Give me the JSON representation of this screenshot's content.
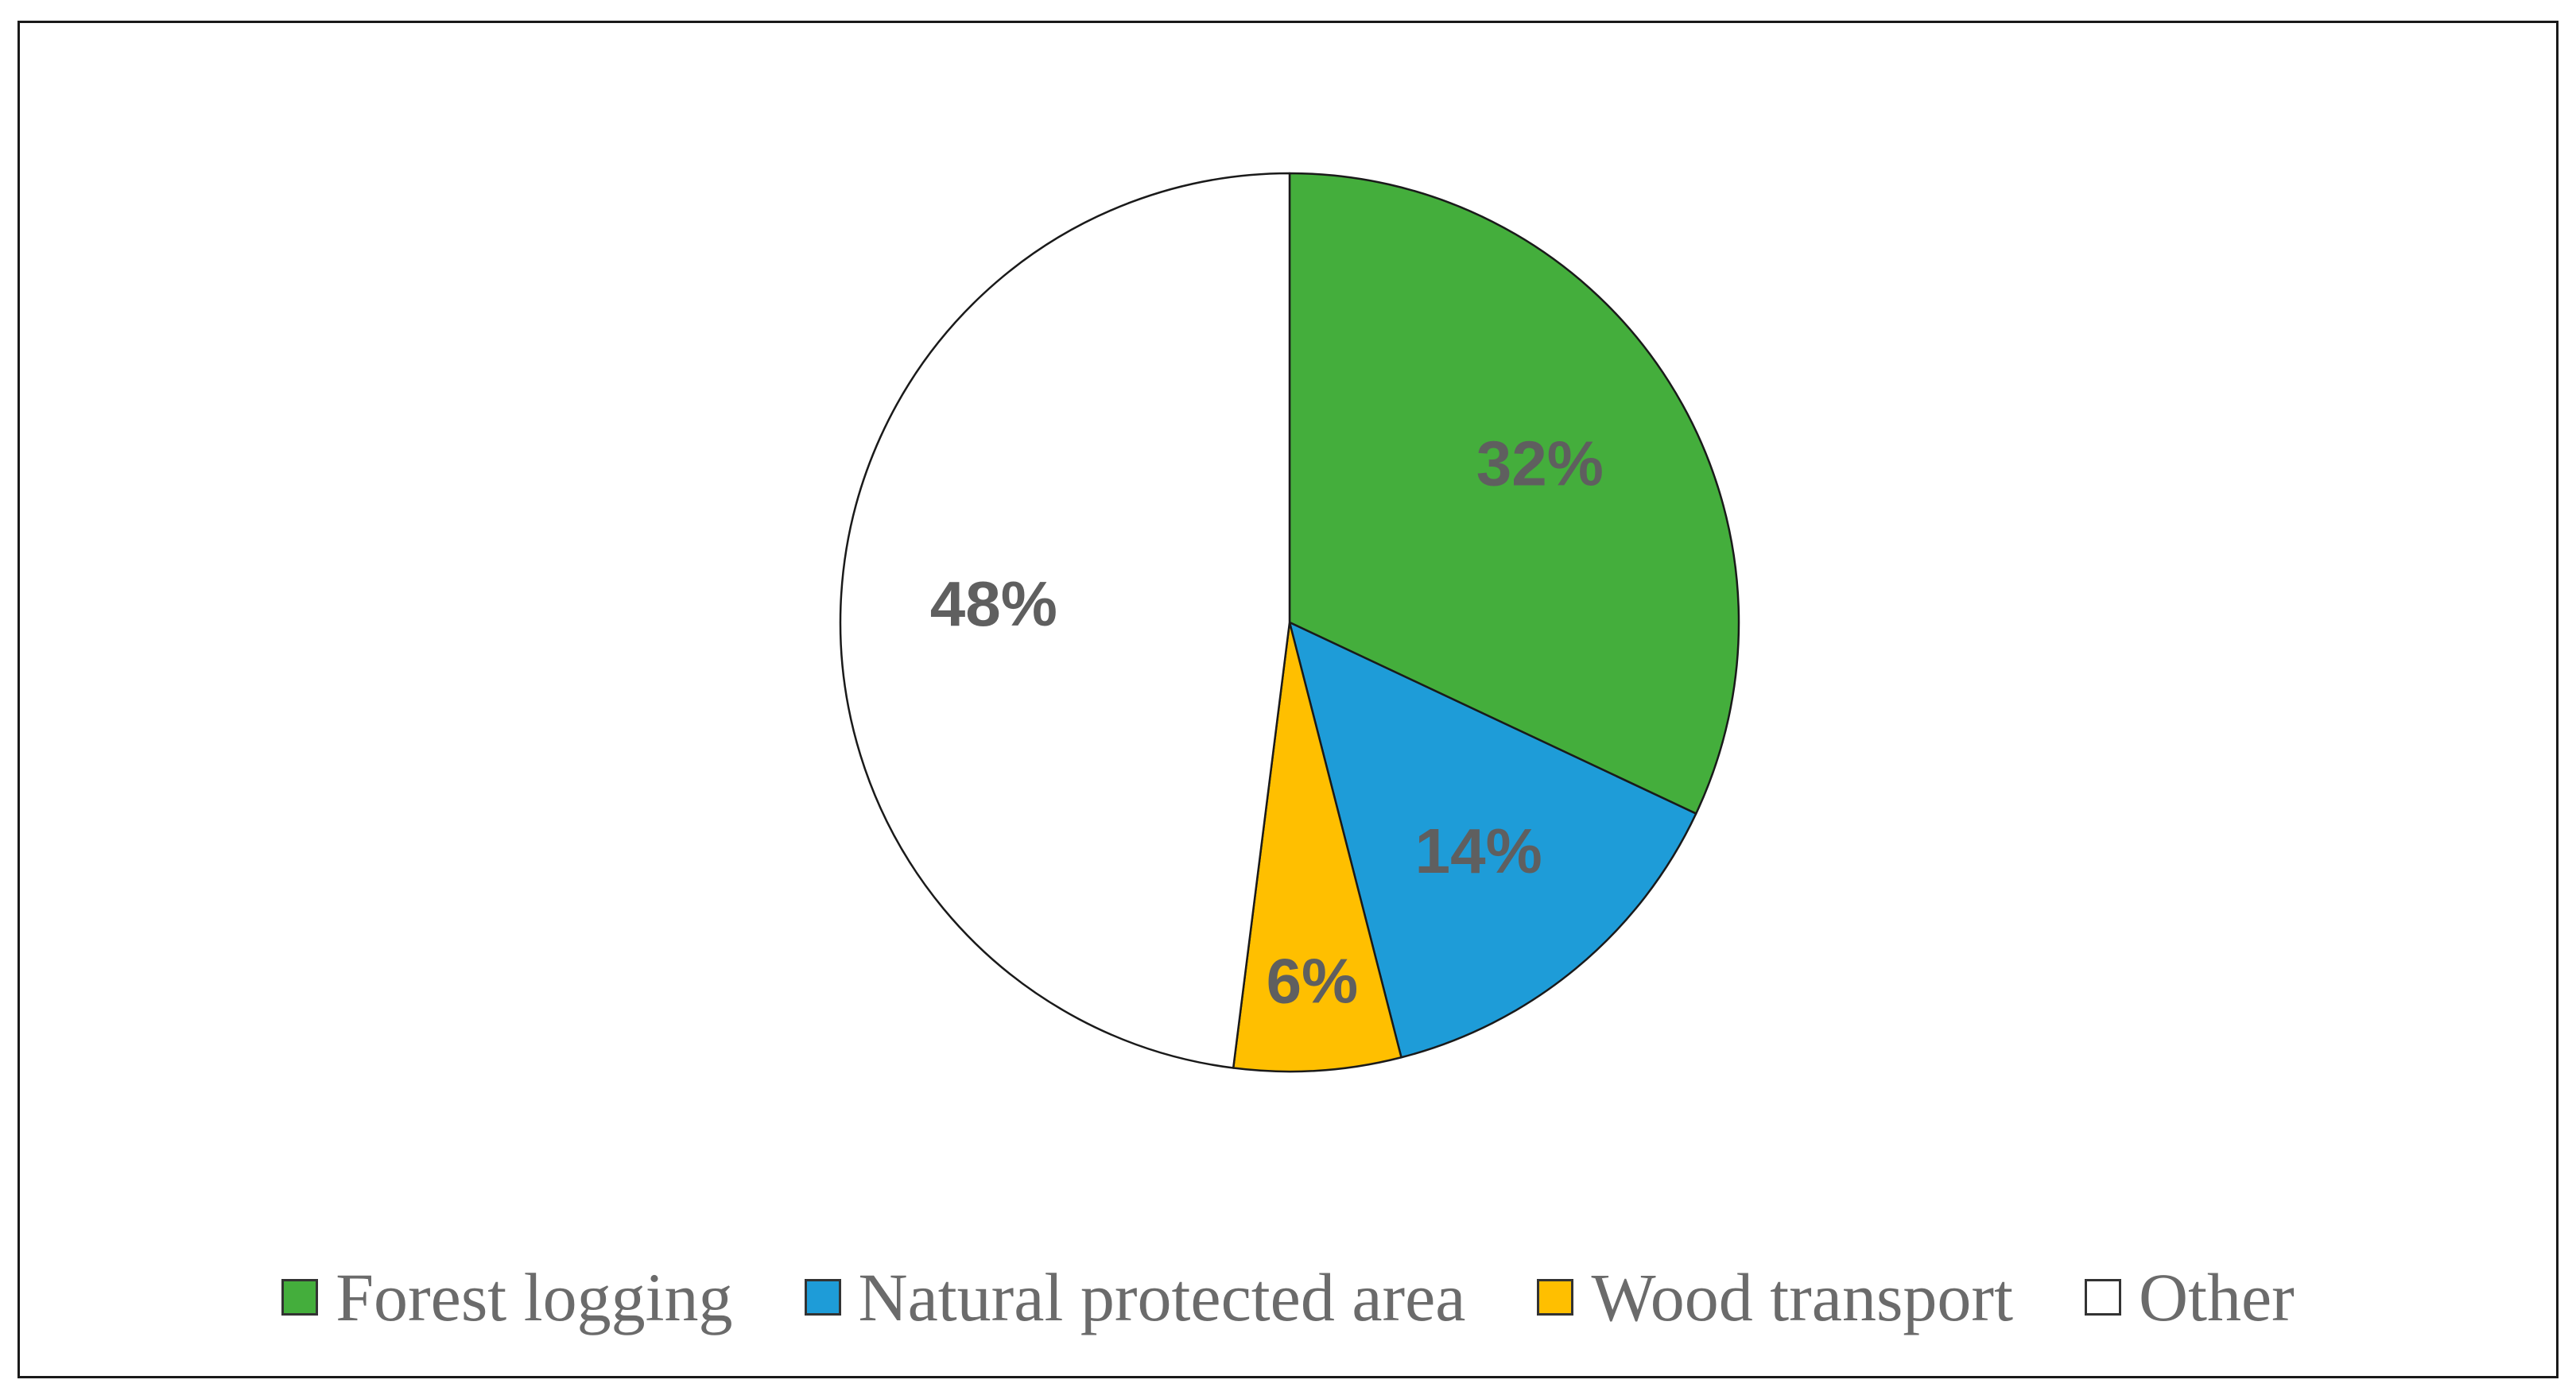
{
  "chart_data": {
    "type": "pie",
    "title": "",
    "slices": [
      {
        "name": "Forest logging",
        "value": 32,
        "label": "32%",
        "color": "#44ae3c"
      },
      {
        "name": "Natural protected area",
        "value": 14,
        "label": "14%",
        "color": "#1e9cd8"
      },
      {
        "name": "Wood transport",
        "value": 6,
        "label": "6%",
        "color": "#ffbf00"
      },
      {
        "name": "Other",
        "value": 48,
        "label": "48%",
        "color": "#ffffff"
      }
    ],
    "start_angle": "12 o'clock",
    "direction": "clockwise",
    "legend_position": "bottom"
  }
}
